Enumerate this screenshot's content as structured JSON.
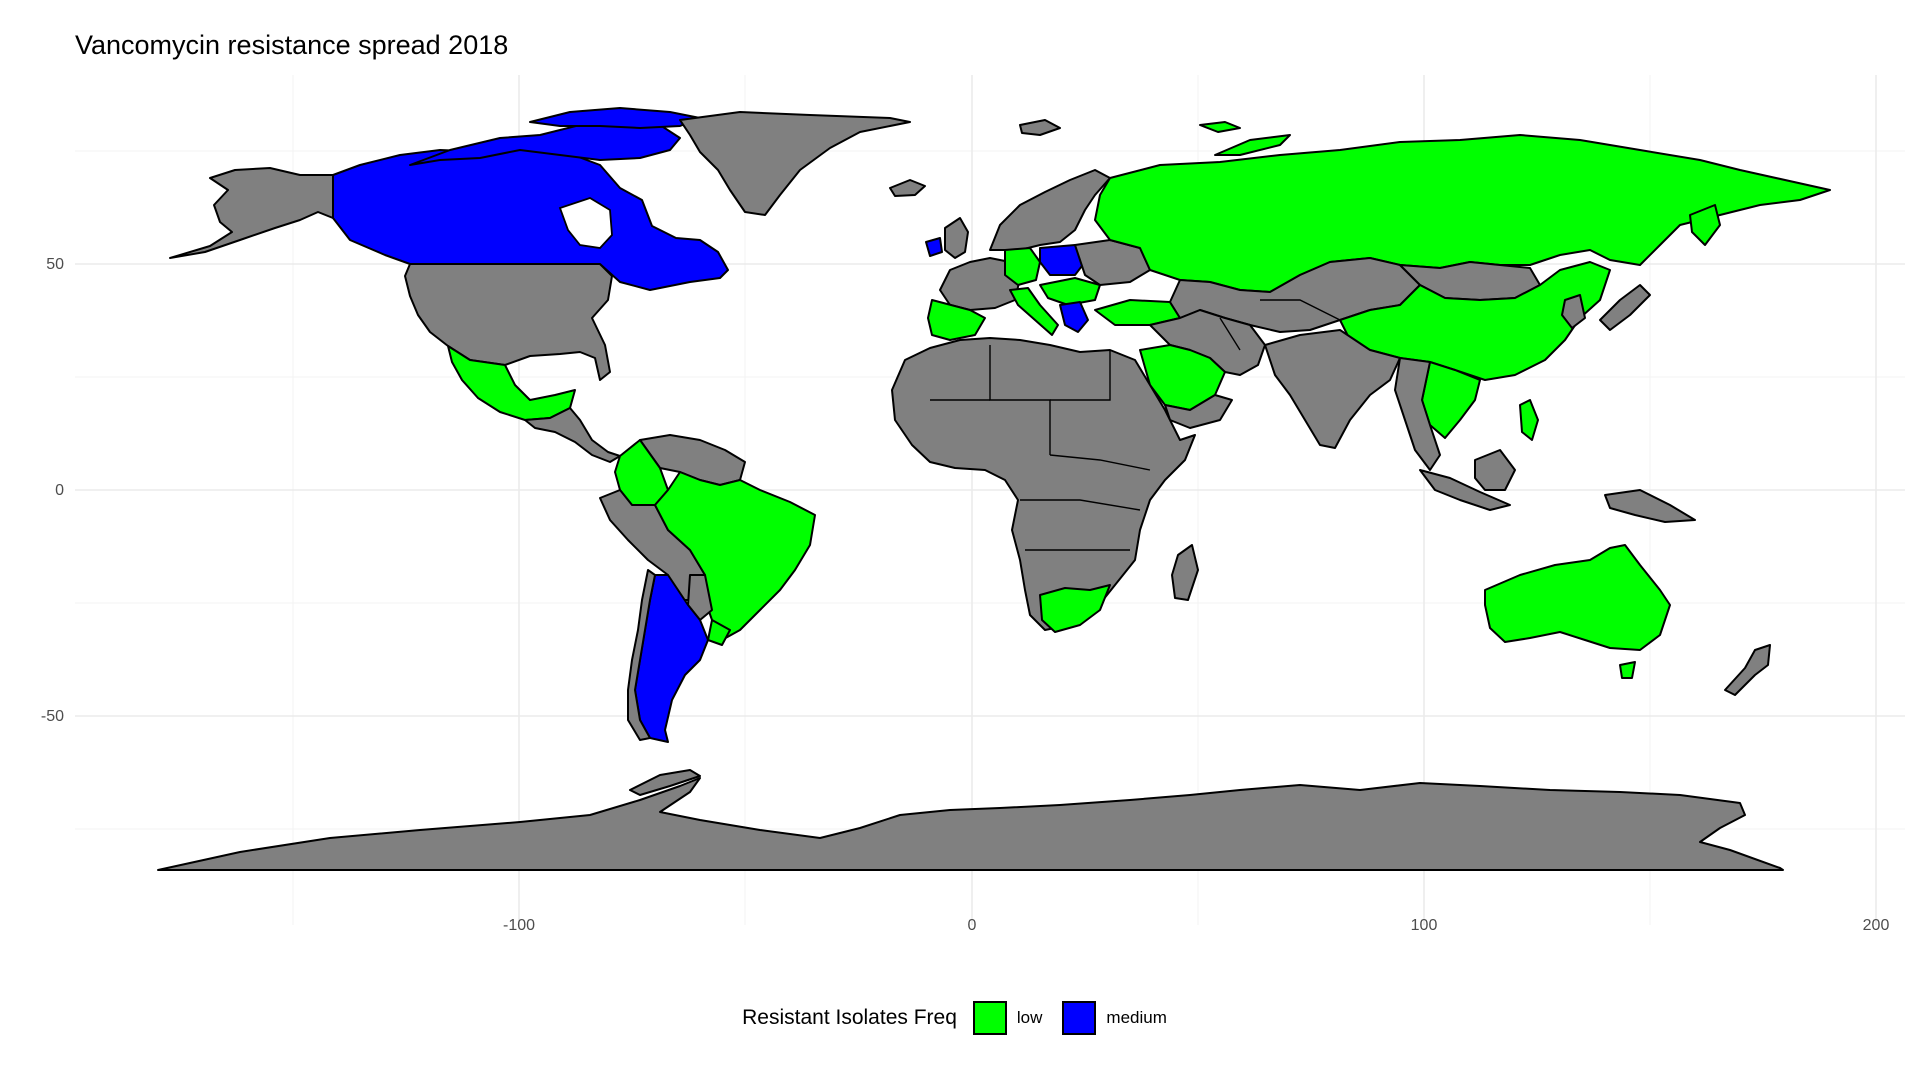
{
  "chart_data": {
    "type": "choropleth",
    "title": "Vancomycin resistance spread 2018",
    "xlabel": "",
    "ylabel": "",
    "xlim": [
      -200,
      210
    ],
    "ylim": [
      -95,
      92
    ],
    "x_ticks": [
      -100,
      0,
      100,
      200
    ],
    "y_ticks": [
      -50,
      0,
      50
    ],
    "grid": true,
    "legend_position": "bottom",
    "legend": {
      "title": "Resistant Isolates Freq",
      "entries": [
        {
          "label": "low",
          "color": "#00ff00"
        },
        {
          "label": "medium",
          "color": "#0000ff"
        }
      ]
    },
    "no_data_color": "#808080",
    "categories": {
      "low": [
        "Mexico",
        "Colombia",
        "Brazil",
        "Uruguay",
        "Portugal",
        "Spain",
        "Italy",
        "Germany",
        "Croatia",
        "Romania",
        "Turkey",
        "Russia",
        "China",
        "Thailand",
        "Vietnam",
        "Philippines",
        "Saudi Arabia",
        "South Africa",
        "Australia"
      ],
      "medium": [
        "Canada",
        "Greenland arctic islands",
        "Argentina",
        "Ireland",
        "Poland",
        "Serbia",
        "Greece"
      ]
    }
  }
}
